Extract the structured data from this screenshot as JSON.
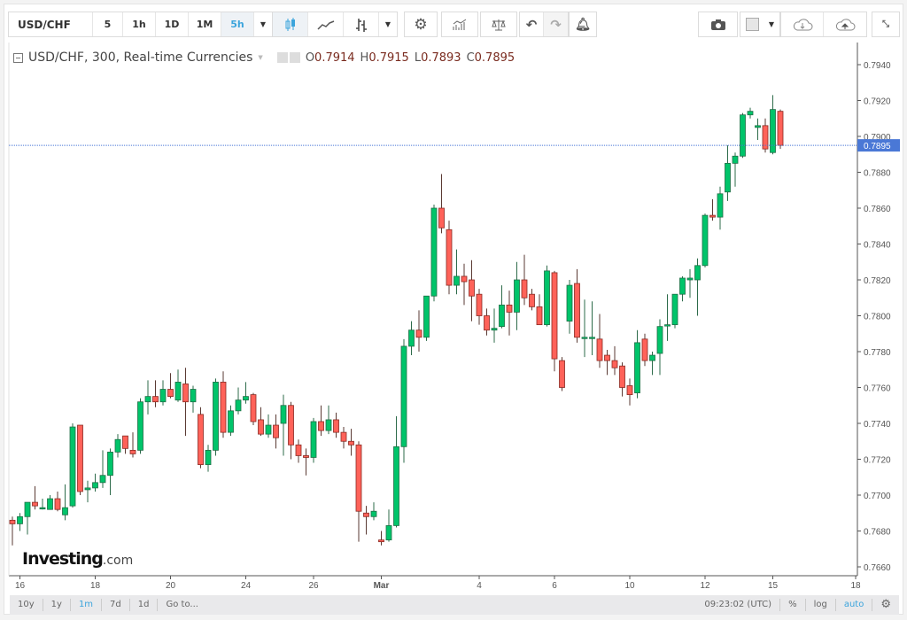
{
  "toolbar": {
    "symbol": "USD/CHF",
    "intervals": [
      {
        "label": "5",
        "active": false
      },
      {
        "label": "1h",
        "active": false
      },
      {
        "label": "1D",
        "active": false
      },
      {
        "label": "1M",
        "active": false
      },
      {
        "label": "5h",
        "active": true
      }
    ],
    "icons": [
      "chevron-down-icon",
      "candlestick-icon",
      "line-chart-icon",
      "bar-chart-icon",
      "chevron-down-icon",
      "gear-icon",
      "indicators-icon",
      "compare-scale-icon",
      "undo-icon",
      "redo-icon",
      "alert-bell-icon",
      "camera-icon",
      "color-swatch-icon",
      "chevron-down-icon",
      "cloud-download-icon",
      "cloud-upload-icon",
      "fullscreen-icon"
    ]
  },
  "legend": {
    "title": "USD/CHF, 300, Real-time Currencies",
    "o_label": "O",
    "o": "0.7914",
    "h_label": "H",
    "h": "0.7915",
    "l_label": "L",
    "l": "0.7893",
    "c_label": "C",
    "c": "0.7895"
  },
  "logo": {
    "main": "Investing",
    "suffix": ".com"
  },
  "bottombar": {
    "ranges": [
      {
        "label": "10y",
        "active": false
      },
      {
        "label": "1y",
        "active": false
      },
      {
        "label": "1m",
        "active": true
      },
      {
        "label": "7d",
        "active": false
      },
      {
        "label": "1d",
        "active": false
      },
      {
        "label": "Go to...",
        "active": false
      }
    ],
    "time": "09:23:02 (UTC)",
    "percent": "%",
    "log": "log",
    "auto": "auto"
  },
  "colors": {
    "up": "#00c46a",
    "down": "#ff6259",
    "price_line": "#4a78d6",
    "price_label_bg": "#4a78d6",
    "active": "#3ba4dc"
  },
  "chart_data": {
    "type": "candlestick",
    "ylim": [
      0.7655,
      0.795
    ],
    "yticks": [
      "0.7660",
      "0.7680",
      "0.7700",
      "0.7720",
      "0.7740",
      "0.7760",
      "0.7780",
      "0.7800",
      "0.7820",
      "0.7840",
      "0.7860",
      "0.7880",
      "0.7900",
      "0.7920",
      "0.7940"
    ],
    "last_price": "0.7895",
    "xticks": [
      {
        "label": "16",
        "candle_index": 1
      },
      {
        "label": "18",
        "candle_index": 11
      },
      {
        "label": "20",
        "candle_index": 21
      },
      {
        "label": "24",
        "candle_index": 31
      },
      {
        "label": "26",
        "candle_index": 40
      },
      {
        "label": "Mar",
        "candle_index": 49,
        "bold": true
      },
      {
        "label": "4",
        "candle_index": 62
      },
      {
        "label": "6",
        "candle_index": 72
      },
      {
        "label": "10",
        "candle_index": 82
      },
      {
        "label": "12",
        "candle_index": 92
      },
      {
        "label": "15",
        "candle_index": 101
      },
      {
        "label": "18",
        "candle_index": 112
      }
    ],
    "ohlc": [
      [
        0.7686,
        0.7688,
        0.7672,
        0.7684
      ],
      [
        0.7684,
        0.769,
        0.768,
        0.7688
      ],
      [
        0.7688,
        0.7696,
        0.7678,
        0.7696
      ],
      [
        0.7696,
        0.7705,
        0.7692,
        0.7694
      ],
      [
        0.7693,
        0.7698,
        0.7692,
        0.7693
      ],
      [
        0.7692,
        0.77,
        0.7692,
        0.7698
      ],
      [
        0.7698,
        0.7702,
        0.7691,
        0.7692
      ],
      [
        0.7689,
        0.7706,
        0.7686,
        0.7693
      ],
      [
        0.7694,
        0.774,
        0.7693,
        0.7738
      ],
      [
        0.7739,
        0.7739,
        0.77,
        0.7702
      ],
      [
        0.7703,
        0.7708,
        0.7696,
        0.7704
      ],
      [
        0.7704,
        0.7712,
        0.7702,
        0.7707
      ],
      [
        0.7707,
        0.7725,
        0.7704,
        0.7711
      ],
      [
        0.7711,
        0.7726,
        0.77,
        0.7724
      ],
      [
        0.7724,
        0.7734,
        0.7721,
        0.7731
      ],
      [
        0.7733,
        0.7733,
        0.7723,
        0.7726
      ],
      [
        0.7725,
        0.7735,
        0.7721,
        0.7723
      ],
      [
        0.7725,
        0.7754,
        0.7723,
        0.7752
      ],
      [
        0.7752,
        0.7764,
        0.7745,
        0.7755
      ],
      [
        0.7755,
        0.7764,
        0.7749,
        0.7752
      ],
      [
        0.7752,
        0.7764,
        0.775,
        0.7759
      ],
      [
        0.7759,
        0.7768,
        0.7754,
        0.7755
      ],
      [
        0.7753,
        0.777,
        0.7752,
        0.7763
      ],
      [
        0.7762,
        0.7771,
        0.7733,
        0.7752
      ],
      [
        0.7752,
        0.7761,
        0.7746,
        0.7759
      ],
      [
        0.7745,
        0.7749,
        0.7715,
        0.7717
      ],
      [
        0.7717,
        0.7728,
        0.7713,
        0.7725
      ],
      [
        0.7725,
        0.7765,
        0.7722,
        0.7763
      ],
      [
        0.7763,
        0.7769,
        0.7732,
        0.7735
      ],
      [
        0.7735,
        0.775,
        0.7733,
        0.7747
      ],
      [
        0.7747,
        0.776,
        0.7745,
        0.7753
      ],
      [
        0.7753,
        0.7763,
        0.7751,
        0.7755
      ],
      [
        0.7756,
        0.7757,
        0.7739,
        0.7741
      ],
      [
        0.7742,
        0.7749,
        0.7733,
        0.7734
      ],
      [
        0.7734,
        0.7745,
        0.7732,
        0.7739
      ],
      [
        0.7739,
        0.7745,
        0.7726,
        0.7732
      ],
      [
        0.774,
        0.7756,
        0.7722,
        0.775
      ],
      [
        0.775,
        0.7752,
        0.772,
        0.7728
      ],
      [
        0.7728,
        0.7731,
        0.7718,
        0.7722
      ],
      [
        0.7722,
        0.7726,
        0.7711,
        0.7721
      ],
      [
        0.7721,
        0.7743,
        0.7718,
        0.7741
      ],
      [
        0.7741,
        0.775,
        0.7733,
        0.7736
      ],
      [
        0.7736,
        0.775,
        0.7734,
        0.7742
      ],
      [
        0.7742,
        0.7746,
        0.7732,
        0.7735
      ],
      [
        0.7735,
        0.7738,
        0.7726,
        0.773
      ],
      [
        0.773,
        0.7737,
        0.7722,
        0.7728
      ],
      [
        0.7728,
        0.773,
        0.7674,
        0.7691
      ],
      [
        0.769,
        0.7694,
        0.7678,
        0.7688
      ],
      [
        0.7688,
        0.7696,
        0.7686,
        0.7691
      ],
      [
        0.7675,
        0.768,
        0.7672,
        0.7674
      ],
      [
        0.7675,
        0.7692,
        0.7674,
        0.7683
      ],
      [
        0.7683,
        0.7744,
        0.7682,
        0.7727
      ],
      [
        0.7727,
        0.7787,
        0.7718,
        0.7783
      ],
      [
        0.7783,
        0.7797,
        0.7778,
        0.7792
      ],
      [
        0.7792,
        0.7803,
        0.778,
        0.7788
      ],
      [
        0.7788,
        0.7811,
        0.7786,
        0.7811
      ],
      [
        0.7811,
        0.7862,
        0.7808,
        0.786
      ],
      [
        0.786,
        0.7879,
        0.7846,
        0.7849
      ],
      [
        0.7848,
        0.7853,
        0.7812,
        0.7817
      ],
      [
        0.7817,
        0.7837,
        0.7812,
        0.7822
      ],
      [
        0.7822,
        0.7829,
        0.7806,
        0.7819
      ],
      [
        0.782,
        0.7831,
        0.7797,
        0.7811
      ],
      [
        0.7812,
        0.7815,
        0.7795,
        0.78
      ],
      [
        0.78,
        0.7804,
        0.7789,
        0.7792
      ],
      [
        0.7792,
        0.7804,
        0.7785,
        0.7793
      ],
      [
        0.7794,
        0.7817,
        0.7793,
        0.7806
      ],
      [
        0.7806,
        0.7814,
        0.7789,
        0.7802
      ],
      [
        0.7802,
        0.783,
        0.7792,
        0.782
      ],
      [
        0.782,
        0.7834,
        0.7806,
        0.781
      ],
      [
        0.7812,
        0.7815,
        0.7803,
        0.7805
      ],
      [
        0.7805,
        0.7812,
        0.7795,
        0.7795
      ],
      [
        0.7795,
        0.7828,
        0.7794,
        0.7825
      ],
      [
        0.7824,
        0.7825,
        0.7769,
        0.7776
      ],
      [
        0.7775,
        0.7777,
        0.7758,
        0.776
      ],
      [
        0.7797,
        0.782,
        0.779,
        0.7817
      ],
      [
        0.7818,
        0.7826,
        0.7785,
        0.7788
      ],
      [
        0.7788,
        0.7809,
        0.7777,
        0.7788
      ],
      [
        0.7788,
        0.7808,
        0.7778,
        0.7788
      ],
      [
        0.7787,
        0.7801,
        0.7771,
        0.7775
      ],
      [
        0.7778,
        0.7781,
        0.7767,
        0.7775
      ],
      [
        0.7775,
        0.7783,
        0.7767,
        0.7771
      ],
      [
        0.7772,
        0.7774,
        0.7755,
        0.776
      ],
      [
        0.7761,
        0.7765,
        0.775,
        0.7756
      ],
      [
        0.7757,
        0.7792,
        0.7754,
        0.7785
      ],
      [
        0.7787,
        0.779,
        0.7772,
        0.7775
      ],
      [
        0.7775,
        0.778,
        0.7767,
        0.7778
      ],
      [
        0.7779,
        0.7798,
        0.7767,
        0.7794
      ],
      [
        0.7795,
        0.7812,
        0.7786,
        0.7795
      ],
      [
        0.7795,
        0.7812,
        0.7793,
        0.7812
      ],
      [
        0.7812,
        0.7822,
        0.7808,
        0.7821
      ],
      [
        0.782,
        0.7826,
        0.781,
        0.7821
      ],
      [
        0.782,
        0.7832,
        0.78,
        0.7828
      ],
      [
        0.7828,
        0.7857,
        0.7827,
        0.7856
      ],
      [
        0.7856,
        0.7865,
        0.7853,
        0.7855
      ],
      [
        0.7855,
        0.7872,
        0.7848,
        0.7868
      ],
      [
        0.7869,
        0.7895,
        0.7864,
        0.7885
      ],
      [
        0.7885,
        0.7891,
        0.7872,
        0.7889
      ],
      [
        0.7889,
        0.7913,
        0.7888,
        0.7912
      ],
      [
        0.7912,
        0.7916,
        0.791,
        0.7914
      ],
      [
        0.7905,
        0.791,
        0.7898,
        0.7906
      ],
      [
        0.7906,
        0.791,
        0.7891,
        0.7893
      ],
      [
        0.7891,
        0.7923,
        0.789,
        0.7915
      ],
      [
        0.7914,
        0.7915,
        0.7893,
        0.7895
      ]
    ]
  }
}
